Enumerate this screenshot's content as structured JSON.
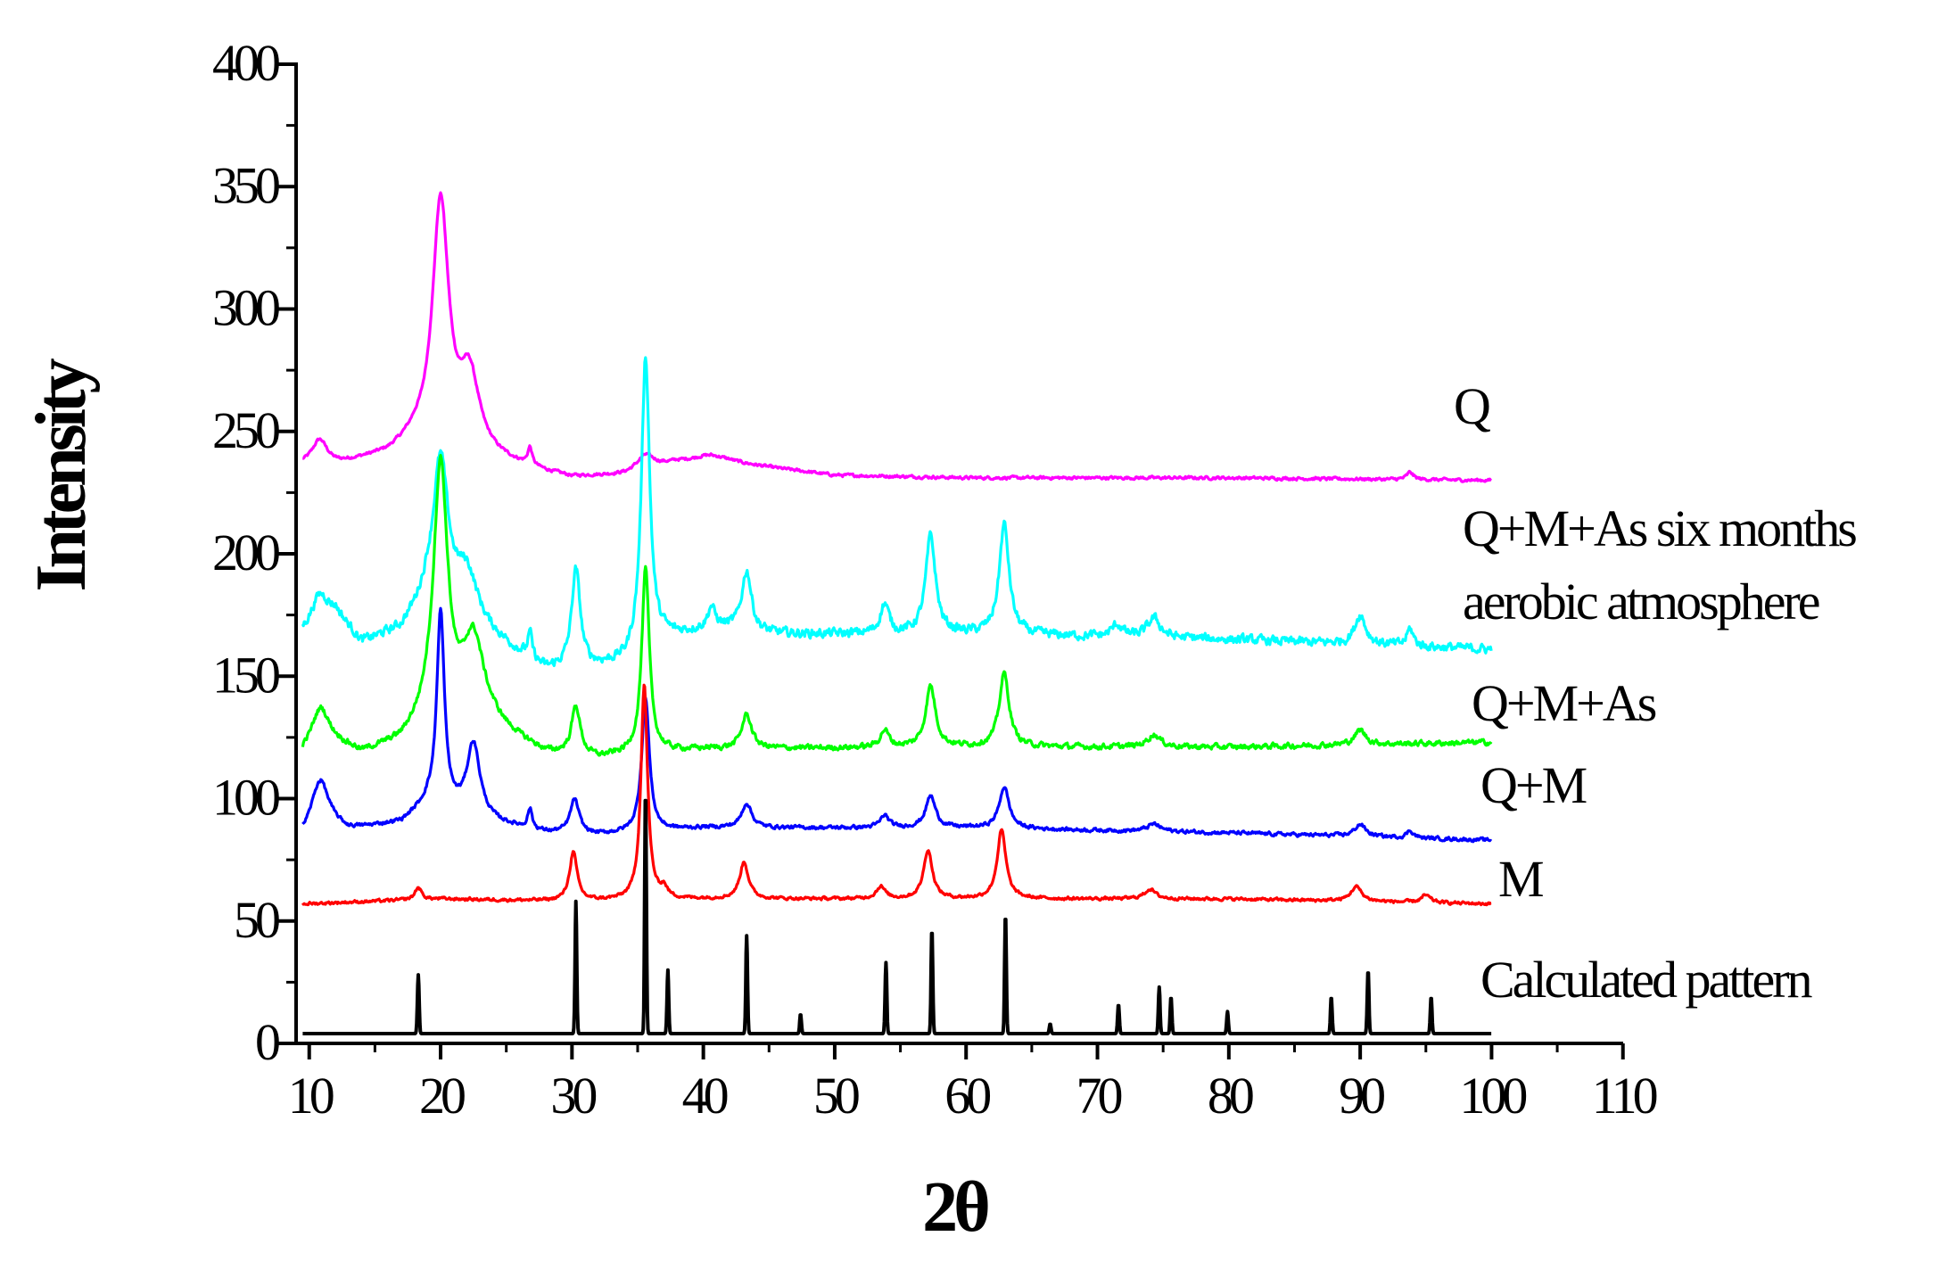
{
  "chart_data": {
    "type": "line",
    "title": "",
    "xlabel": "2θ",
    "ylabel": "Intensity",
    "xlim": [
      9,
      110
    ],
    "ylim": [
      0,
      400
    ],
    "x_ticks": [
      10,
      20,
      30,
      40,
      50,
      60,
      70,
      80,
      90,
      100,
      110
    ],
    "y_ticks": [
      0,
      50,
      100,
      150,
      200,
      250,
      300,
      350,
      400
    ],
    "grid": false,
    "legend": "labels placed at right end of each trace",
    "x_range_data": [
      9.5,
      100
    ],
    "series": [
      {
        "name": "Q",
        "label_lines": [
          "Q"
        ],
        "color": "#ff00ff",
        "style": "noisy",
        "noise": 1.0,
        "baseline": [
          [
            9.5,
            236
          ],
          [
            12,
            236
          ],
          [
            16,
            240
          ],
          [
            18,
            245
          ],
          [
            24,
            238
          ],
          [
            28,
            233
          ],
          [
            30,
            231
          ],
          [
            34,
            232
          ],
          [
            38,
            237
          ],
          [
            42,
            237
          ],
          [
            50,
            232
          ],
          [
            60,
            231
          ],
          [
            80,
            231
          ],
          [
            100,
            230
          ]
        ],
        "peaks": [
          [
            10.8,
            10,
            0.7
          ],
          [
            20.0,
            100,
            0.75
          ],
          [
            22.2,
            30,
            0.9
          ],
          [
            26.8,
            7,
            0.2
          ],
          [
            35.6,
            6,
            0.8
          ],
          [
            40.5,
            3,
            1.5
          ],
          [
            93.8,
            3,
            0.3
          ]
        ]
      },
      {
        "name": "Q+M+As six months aerobic atmosphere",
        "label_lines": [
          "Q+M+As six months",
          "aerobic atmosphere"
        ],
        "color": "#00ffff",
        "style": "noisy",
        "noise": 3.0,
        "baseline": [
          [
            9.5,
            167
          ],
          [
            12,
            175
          ],
          [
            14,
            163
          ],
          [
            17,
            168
          ],
          [
            19,
            180
          ],
          [
            24,
            165
          ],
          [
            28,
            152
          ],
          [
            31,
            153
          ],
          [
            34,
            155
          ],
          [
            37,
            165
          ],
          [
            41,
            170
          ],
          [
            44,
            167
          ],
          [
            60,
            167
          ],
          [
            80,
            165
          ],
          [
            100,
            161
          ]
        ],
        "peaks": [
          [
            10.8,
            12,
            0.8
          ],
          [
            20.0,
            60,
            0.7
          ],
          [
            22.0,
            20,
            1.0
          ],
          [
            26.8,
            10,
            0.2
          ],
          [
            30.3,
            40,
            0.4
          ],
          [
            35.6,
            120,
            0.38
          ],
          [
            40.6,
            8,
            0.3
          ],
          [
            43.3,
            25,
            0.45
          ],
          [
            53.8,
            12,
            0.4
          ],
          [
            57.3,
            40,
            0.45
          ],
          [
            62.9,
            45,
            0.45
          ],
          [
            71.5,
            5,
            0.5
          ],
          [
            74.3,
            8,
            0.6
          ],
          [
            90.0,
            12,
            0.5
          ],
          [
            93.8,
            7,
            0.3
          ]
        ]
      },
      {
        "name": "Q+M+As",
        "label_lines": [
          "Q+M+As"
        ],
        "color": "#00ff00",
        "style": "noisy",
        "noise": 1.8,
        "baseline": [
          [
            9.5,
            118
          ],
          [
            11,
            125
          ],
          [
            14,
            118
          ],
          [
            17,
            122
          ],
          [
            19,
            130
          ],
          [
            24,
            128
          ],
          [
            28,
            118
          ],
          [
            32,
            116
          ],
          [
            35,
            118
          ],
          [
            40,
            120
          ],
          [
            60,
            121
          ],
          [
            80,
            121
          ],
          [
            100,
            123
          ]
        ],
        "peaks": [
          [
            10.8,
            12,
            0.8
          ],
          [
            20.0,
            105,
            0.65
          ],
          [
            22.5,
            35,
            1.0
          ],
          [
            30.3,
            20,
            0.4
          ],
          [
            35.6,
            75,
            0.35
          ],
          [
            43.3,
            14,
            0.45
          ],
          [
            53.8,
            7,
            0.4
          ],
          [
            57.3,
            25,
            0.45
          ],
          [
            62.9,
            30,
            0.45
          ],
          [
            74.3,
            5,
            0.6
          ],
          [
            90.0,
            6,
            0.5
          ]
        ]
      },
      {
        "name": "Q+M",
        "label_lines": [
          "Q+M"
        ],
        "color": "#0000ff",
        "style": "noisy",
        "noise": 1.2,
        "baseline": [
          [
            9.5,
            84
          ],
          [
            11,
            90
          ],
          [
            13,
            87
          ],
          [
            17,
            90
          ],
          [
            19,
            97
          ],
          [
            24,
            90
          ],
          [
            28,
            86
          ],
          [
            32,
            85
          ],
          [
            35,
            86
          ],
          [
            40,
            88
          ],
          [
            60,
            88
          ],
          [
            80,
            86
          ],
          [
            100,
            83
          ]
        ],
        "peaks": [
          [
            10.8,
            18,
            0.8
          ],
          [
            20.0,
            80,
            0.35
          ],
          [
            22.5,
            30,
            0.6
          ],
          [
            26.8,
            8,
            0.2
          ],
          [
            30.2,
            14,
            0.4
          ],
          [
            35.6,
            55,
            0.35
          ],
          [
            43.3,
            10,
            0.45
          ],
          [
            53.8,
            5,
            0.4
          ],
          [
            57.3,
            13,
            0.45
          ],
          [
            62.9,
            17,
            0.45
          ],
          [
            74.3,
            3,
            0.6
          ],
          [
            90.0,
            5,
            0.5
          ],
          [
            93.8,
            3,
            0.3
          ]
        ]
      },
      {
        "name": "M",
        "label_lines": [
          "M"
        ],
        "color": "#ff0000",
        "style": "noisy",
        "noise": 1.0,
        "baseline": [
          [
            9.5,
            57
          ],
          [
            20,
            59
          ],
          [
            30,
            58
          ],
          [
            40,
            59
          ],
          [
            60,
            59
          ],
          [
            80,
            59
          ],
          [
            100,
            57
          ]
        ],
        "peaks": [
          [
            18.3,
            5,
            0.3
          ],
          [
            30.1,
            20,
            0.35
          ],
          [
            35.5,
            88,
            0.3
          ],
          [
            37.0,
            4,
            0.3
          ],
          [
            43.1,
            15,
            0.4
          ],
          [
            53.5,
            5,
            0.4
          ],
          [
            57.1,
            20,
            0.4
          ],
          [
            62.7,
            28,
            0.4
          ],
          [
            74.0,
            4,
            0.5
          ],
          [
            89.7,
            6,
            0.5
          ],
          [
            95.0,
            3,
            0.4
          ]
        ]
      },
      {
        "name": "Calculated pattern",
        "label_lines": [
          "Calculated pattern"
        ],
        "color": "#000000",
        "style": "sticks",
        "baseline_value": 4,
        "sticks": [
          [
            18.3,
            24
          ],
          [
            30.3,
            54
          ],
          [
            35.6,
            100
          ],
          [
            37.3,
            26
          ],
          [
            43.3,
            40
          ],
          [
            47.4,
            8
          ],
          [
            53.9,
            29
          ],
          [
            57.4,
            43
          ],
          [
            63.0,
            49
          ],
          [
            66.4,
            4
          ],
          [
            71.6,
            12
          ],
          [
            74.7,
            19
          ],
          [
            75.6,
            15
          ],
          [
            79.9,
            9
          ],
          [
            87.8,
            15
          ],
          [
            90.6,
            26
          ],
          [
            95.4,
            15
          ]
        ]
      }
    ]
  }
}
